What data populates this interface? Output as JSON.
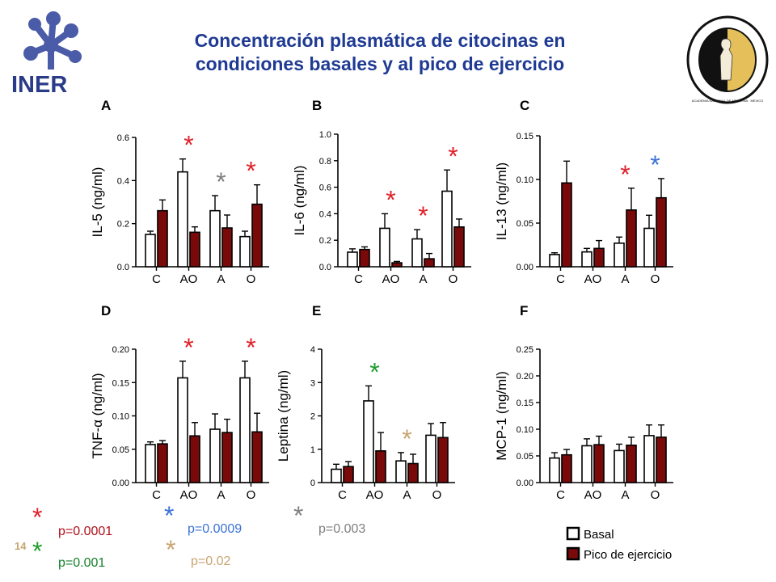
{
  "header": {
    "title_line1": "Concentración plasmática de citocinas en",
    "title_line2": "condiciones basales y al pico de ejercicio",
    "logo_text": "INER",
    "seal_text": "ACADEMIA NACIONAL DE MEDICINA · MEXICO",
    "slide_number": "14"
  },
  "colors": {
    "basal": "#ffffff",
    "peak": "#7a0a0a",
    "red": "#e0202a",
    "blue": "#3a72d6",
    "gray": "#7f7f7f",
    "green": "#1f9d2e",
    "tan": "#c8a470",
    "title": "#1f3a93"
  },
  "significance_legend": [
    {
      "color": "red",
      "label": "p=0.0001"
    },
    {
      "color": "green",
      "label": "p=0.001"
    },
    {
      "color": "blue",
      "label": "p=0.0009"
    },
    {
      "color": "tan",
      "label": "p=0.02"
    },
    {
      "color": "gray",
      "label": "p=0.003"
    }
  ],
  "series_legend": [
    {
      "name": "Basal"
    },
    {
      "name": "Pico de ejercicio"
    }
  ],
  "chart_data": [
    {
      "panel": "A",
      "type": "bar",
      "ylabel": "IL-5 (ng/ml)",
      "categories": [
        "C",
        "AO",
        "A",
        "O"
      ],
      "ylim": [
        0,
        0.6
      ],
      "yticks": [
        "0.0",
        "0.2",
        "0.4",
        "0.6"
      ],
      "ytick_values": [
        0,
        0.2,
        0.4,
        0.6
      ],
      "series": [
        {
          "name": "Basal",
          "values": [
            0.15,
            0.44,
            0.26,
            0.14
          ],
          "errors": [
            0.015,
            0.06,
            0.07,
            0.025
          ]
        },
        {
          "name": "Pico de ejercicio",
          "values": [
            0.26,
            0.16,
            0.18,
            0.29
          ],
          "errors": [
            0.05,
            0.025,
            0.06,
            0.09
          ]
        }
      ],
      "annotations": [
        {
          "category": 1,
          "color": "red",
          "text": "*"
        },
        {
          "category": 2,
          "color": "gray",
          "text": "*"
        },
        {
          "category": 3,
          "color": "red",
          "text": "*"
        }
      ]
    },
    {
      "panel": "B",
      "type": "bar",
      "ylabel": "IL-6 (ng/ml)",
      "categories": [
        "C",
        "AO",
        "A",
        "O"
      ],
      "ylim": [
        0,
        1.0
      ],
      "yticks": [
        "0.0",
        "0.2",
        "0.4",
        "0.6",
        "0.8",
        "1.0"
      ],
      "ytick_values": [
        0,
        0.2,
        0.4,
        0.6,
        0.8,
        1.0
      ],
      "series": [
        {
          "name": "Basal",
          "values": [
            0.11,
            0.29,
            0.21,
            0.57
          ],
          "errors": [
            0.025,
            0.11,
            0.07,
            0.16
          ]
        },
        {
          "name": "Pico de ejercicio",
          "values": [
            0.13,
            0.03,
            0.06,
            0.3
          ],
          "errors": [
            0.02,
            0.01,
            0.04,
            0.06
          ]
        }
      ],
      "annotations": [
        {
          "category": 1,
          "color": "red",
          "text": "*"
        },
        {
          "category": 2,
          "color": "red",
          "text": "*"
        },
        {
          "category": 3,
          "color": "red",
          "text": "*"
        }
      ]
    },
    {
      "panel": "C",
      "type": "bar",
      "ylabel": "IL-13 (ng/ml)",
      "categories": [
        "C",
        "AO",
        "A",
        "O"
      ],
      "ylim": [
        0,
        0.15
      ],
      "yticks": [
        "0.00",
        "0.05",
        "0.10",
        "0.15"
      ],
      "ytick_values": [
        0,
        0.05,
        0.1,
        0.15
      ],
      "series": [
        {
          "name": "Basal",
          "values": [
            0.014,
            0.017,
            0.027,
            0.044
          ],
          "errors": [
            0.002,
            0.004,
            0.007,
            0.015
          ]
        },
        {
          "name": "Pico de ejercicio",
          "values": [
            0.096,
            0.021,
            0.065,
            0.079
          ],
          "errors": [
            0.025,
            0.009,
            0.025,
            0.022
          ]
        }
      ],
      "annotations": [
        {
          "category": 2,
          "color": "red",
          "text": "*"
        },
        {
          "category": 3,
          "color": "blue",
          "text": "*"
        }
      ]
    },
    {
      "panel": "D",
      "type": "bar",
      "ylabel": "TNF-α (ng/ml)",
      "categories": [
        "C",
        "AO",
        "A",
        "O"
      ],
      "ylim": [
        0,
        0.2
      ],
      "yticks": [
        "0.00",
        "0.05",
        "0.10",
        "0.15",
        "0.20"
      ],
      "ytick_values": [
        0,
        0.05,
        0.1,
        0.15,
        0.2
      ],
      "series": [
        {
          "name": "Basal",
          "values": [
            0.057,
            0.157,
            0.08,
            0.157
          ],
          "errors": [
            0.004,
            0.025,
            0.023,
            0.025
          ]
        },
        {
          "name": "Pico de ejercicio",
          "values": [
            0.058,
            0.07,
            0.075,
            0.076
          ],
          "errors": [
            0.005,
            0.02,
            0.02,
            0.028
          ]
        }
      ],
      "annotations": [
        {
          "category": 1,
          "color": "red",
          "text": "*"
        },
        {
          "category": 3,
          "color": "red",
          "text": "*"
        }
      ]
    },
    {
      "panel": "E",
      "type": "bar",
      "ylabel": "Leptina (ng/ml)",
      "categories": [
        "C",
        "AO",
        "A",
        "O"
      ],
      "ylim": [
        0,
        4
      ],
      "yticks": [
        "0",
        "1",
        "2",
        "3",
        "4"
      ],
      "ytick_values": [
        0,
        1,
        2,
        3,
        4
      ],
      "series": [
        {
          "name": "Basal",
          "values": [
            0.4,
            2.45,
            0.65,
            1.42
          ],
          "errors": [
            0.15,
            0.45,
            0.25,
            0.35
          ]
        },
        {
          "name": "Pico de ejercicio",
          "values": [
            0.48,
            0.95,
            0.57,
            1.35
          ],
          "errors": [
            0.15,
            0.55,
            0.28,
            0.45
          ]
        }
      ],
      "annotations": [
        {
          "category": 1,
          "color": "green",
          "text": "*"
        },
        {
          "category": 2,
          "color": "tan",
          "text": "*"
        }
      ]
    },
    {
      "panel": "F",
      "type": "bar",
      "ylabel": "MCP-1 (ng/ml)",
      "categories": [
        "C",
        "AO",
        "A",
        "O"
      ],
      "ylim": [
        0,
        0.25
      ],
      "yticks": [
        "0.00",
        "0.05",
        "0.10",
        "0.15",
        "0.20",
        "0.25"
      ],
      "ytick_values": [
        0,
        0.05,
        0.1,
        0.15,
        0.2,
        0.25
      ],
      "series": [
        {
          "name": "Basal",
          "values": [
            0.046,
            0.069,
            0.06,
            0.088
          ],
          "errors": [
            0.01,
            0.013,
            0.012,
            0.02
          ]
        },
        {
          "name": "Pico de ejercicio",
          "values": [
            0.052,
            0.071,
            0.07,
            0.085
          ],
          "errors": [
            0.01,
            0.016,
            0.015,
            0.023
          ]
        }
      ],
      "annotations": []
    }
  ]
}
